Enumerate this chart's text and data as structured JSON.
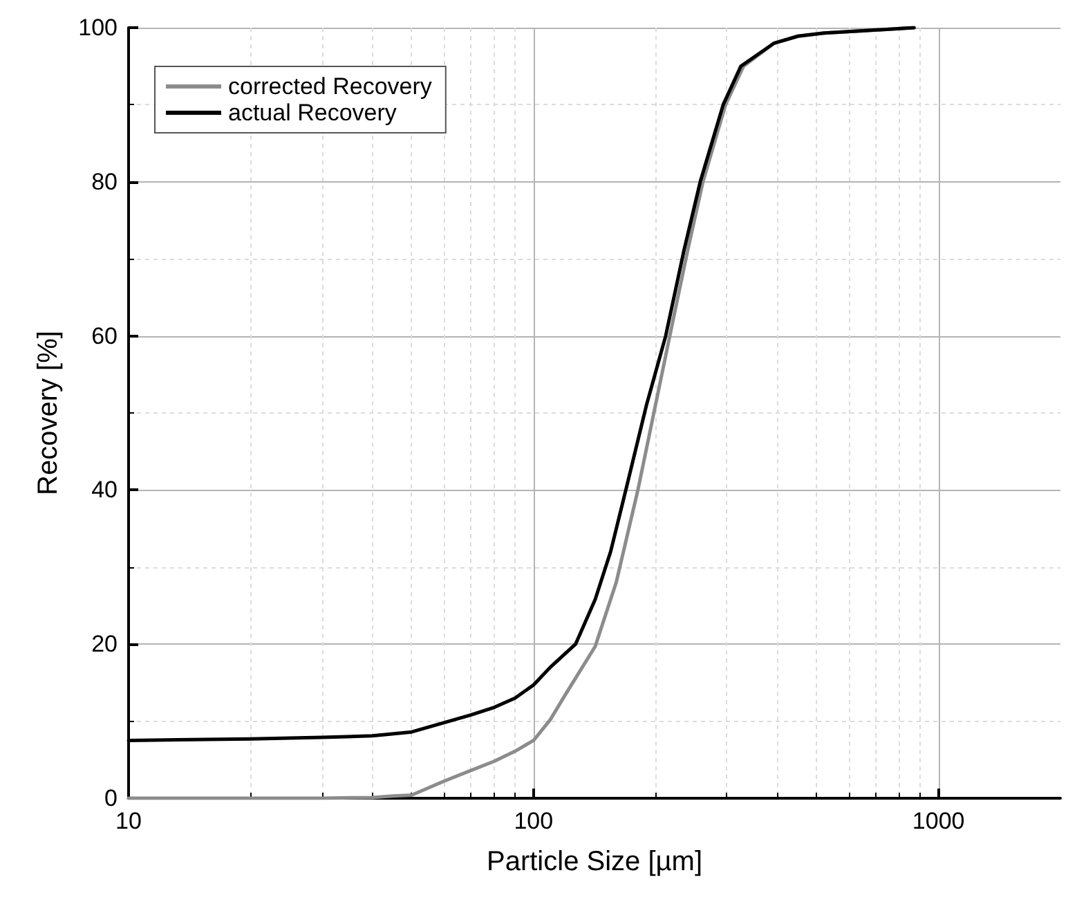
{
  "chart_data": {
    "type": "line",
    "xlabel": "Particle Size [µm]",
    "ylabel": "Recovery [%]",
    "log": "x",
    "xlim": [
      10,
      2000
    ],
    "xticks": [
      10,
      100,
      1000
    ],
    "ylim": [
      0,
      100
    ],
    "yticks": [
      0,
      20,
      40,
      60,
      80,
      100
    ],
    "grid": true,
    "legend": "top left",
    "marker": "none",
    "line_style": "solid",
    "series": [
      {
        "name": "corrected Recovery",
        "color": "#8c8c8c",
        "x": [
          10,
          20,
          30,
          40,
          45,
          50,
          60,
          70,
          80,
          90,
          100,
          110,
          120,
          142,
          160,
          181,
          200,
          217,
          240,
          262,
          298,
          330,
          393,
          450,
          522,
          650,
          870
        ],
        "values": [
          0,
          0,
          0,
          0.1,
          0.3,
          0.4,
          2.2,
          3.6,
          4.8,
          6.1,
          7.5,
          10.2,
          13.5,
          19.7,
          28,
          40,
          51,
          60,
          71,
          80,
          90,
          95,
          98,
          98.9,
          99.3,
          99.6,
          100
        ]
      },
      {
        "name": "actual Recovery",
        "color": "#000000",
        "x": [
          10,
          20,
          30,
          40,
          50,
          60,
          70,
          80,
          90,
          100,
          110,
          127,
          142,
          155,
          169,
          190,
          212,
          235,
          258,
          294,
          325,
          393,
          450,
          522,
          650,
          870
        ],
        "values": [
          7.5,
          7.7,
          7.9,
          8.1,
          8.6,
          9.8,
          10.8,
          11.8,
          13,
          14.7,
          17,
          20,
          25.8,
          32,
          40,
          51,
          60,
          71,
          80,
          90,
          95,
          98,
          98.9,
          99.3,
          99.6,
          100
        ]
      }
    ]
  }
}
